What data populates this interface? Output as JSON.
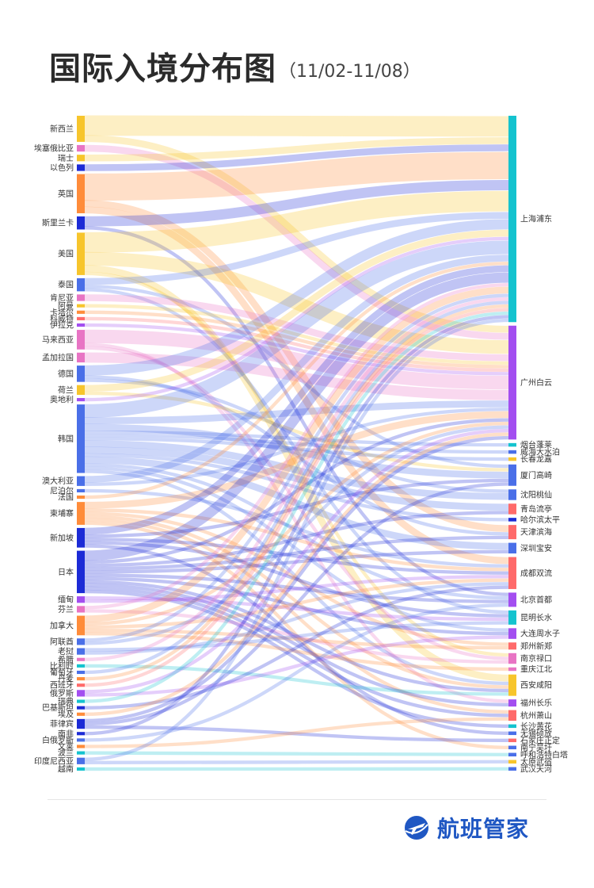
{
  "header": {
    "title": "国际入境分布图",
    "subtitle": "（11/02-11/08）"
  },
  "brand": {
    "name": "航班管家",
    "color": "#1f57c3"
  },
  "diagram": {
    "type": "sankey",
    "sources": [
      {
        "name": "新西兰",
        "color": "#f7c52c"
      },
      {
        "name": "埃塞俄比亚",
        "color": "#e874c4"
      },
      {
        "name": "瑞士",
        "color": "#f7c52c"
      },
      {
        "name": "以色列",
        "color": "#1c2bd6"
      },
      {
        "name": "英国",
        "color": "#ff8c3a"
      },
      {
        "name": "斯里兰卡",
        "color": "#1c2bd6"
      },
      {
        "name": "美国",
        "color": "#f7c52c"
      },
      {
        "name": "泰国",
        "color": "#4a6fe8"
      },
      {
        "name": "肯尼亚",
        "color": "#e874c4"
      },
      {
        "name": "阿曼",
        "color": "#f7c52c"
      },
      {
        "name": "卡塔尔",
        "color": "#ff8c3a"
      },
      {
        "name": "科威特",
        "color": "#ff6a6a"
      },
      {
        "name": "伊拉克",
        "color": "#a34ef0"
      },
      {
        "name": "马来西亚",
        "color": "#e874c4"
      },
      {
        "name": "孟加拉国",
        "color": "#e874c4"
      },
      {
        "name": "德国",
        "color": "#4a6fe8"
      },
      {
        "name": "荷兰",
        "color": "#f7c52c"
      },
      {
        "name": "奥地利",
        "color": "#a34ef0"
      },
      {
        "name": "韩国",
        "color": "#4a6fe8"
      },
      {
        "name": "澳大利亚",
        "color": "#4a6fe8"
      },
      {
        "name": "尼泊尔",
        "color": "#4a6fe8"
      },
      {
        "name": "法国",
        "color": "#ff8c3a"
      },
      {
        "name": "柬埔寨",
        "color": "#ff8c3a"
      },
      {
        "name": "新加坡",
        "color": "#1c2bd6"
      },
      {
        "name": "日本",
        "color": "#1c2bd6"
      },
      {
        "name": "缅甸",
        "color": "#a34ef0"
      },
      {
        "name": "芬兰",
        "color": "#e874c4"
      },
      {
        "name": "加拿大",
        "color": "#ff8c3a"
      },
      {
        "name": "阿联酋",
        "color": "#4a6fe8"
      },
      {
        "name": "老挝",
        "color": "#4a6fe8"
      },
      {
        "name": "希腊",
        "color": "#e874c4"
      },
      {
        "name": "比利时",
        "color": "#14c3cf"
      },
      {
        "name": "葡萄牙",
        "color": "#4a6fe8"
      },
      {
        "name": "丹麦",
        "color": "#ff8c3a"
      },
      {
        "name": "西班牙",
        "color": "#ff6a6a"
      },
      {
        "name": "俄罗斯",
        "color": "#a34ef0"
      },
      {
        "name": "瑞典",
        "color": "#14c3cf"
      },
      {
        "name": "巴基斯坦",
        "color": "#1c2bd6"
      },
      {
        "name": "埃及",
        "color": "#ff8c3a"
      },
      {
        "name": "菲律宾",
        "color": "#1c2bd6"
      },
      {
        "name": "南非",
        "color": "#1c2bd6"
      },
      {
        "name": "白俄罗斯",
        "color": "#4a6fe8"
      },
      {
        "name": "文莱",
        "color": "#ff8c3a"
      },
      {
        "name": "波兰",
        "color": "#14c3cf"
      },
      {
        "name": "印度尼西亚",
        "color": "#4a6fe8"
      },
      {
        "name": "越南",
        "color": "#14c3cf"
      }
    ],
    "targets": [
      {
        "name": "上海浦东",
        "color": "#14c3cf"
      },
      {
        "name": "广州白云",
        "color": "#a34ef0"
      },
      {
        "name": "烟台蓬莱",
        "color": "#14c3cf"
      },
      {
        "name": "威海大水泊",
        "color": "#4a6fe8"
      },
      {
        "name": "长春龙嘉",
        "color": "#f7c52c"
      },
      {
        "name": "厦门高崎",
        "color": "#4a6fe8"
      },
      {
        "name": "沈阳桃仙",
        "color": "#4a6fe8"
      },
      {
        "name": "青岛流亭",
        "color": "#ff6a6a"
      },
      {
        "name": "哈尔滨太平",
        "color": "#1c2bd6"
      },
      {
        "name": "天津滨海",
        "color": "#ff6a6a"
      },
      {
        "name": "深圳宝安",
        "color": "#4a6fe8"
      },
      {
        "name": "成都双流",
        "color": "#ff6a6a"
      },
      {
        "name": "北京首都",
        "color": "#a34ef0"
      },
      {
        "name": "昆明长水",
        "color": "#14c3cf"
      },
      {
        "name": "大连周水子",
        "color": "#a34ef0"
      },
      {
        "name": "郑州新郑",
        "color": "#ff6a6a"
      },
      {
        "name": "南京禄口",
        "color": "#e874c4"
      },
      {
        "name": "重庆江北",
        "color": "#e874c4"
      },
      {
        "name": "西安咸阳",
        "color": "#f7c52c"
      },
      {
        "name": "福州长乐",
        "color": "#a34ef0"
      },
      {
        "name": "杭州萧山",
        "color": "#ff6a6a"
      },
      {
        "name": "长沙黄花",
        "color": "#14c3cf"
      },
      {
        "name": "无锡硕放",
        "color": "#4a6fe8"
      },
      {
        "name": "石家庄正定",
        "color": "#ff6a6a"
      },
      {
        "name": "南宁吴圩",
        "color": "#4a6fe8"
      },
      {
        "name": "呼和浩特白塔",
        "color": "#4a6fe8"
      },
      {
        "name": "太原武宿",
        "color": "#f7c52c"
      },
      {
        "name": "武汉天河",
        "color": "#4a6fe8"
      }
    ],
    "links": [
      {
        "source": "新西兰",
        "target": "上海浦东",
        "value": 6
      },
      {
        "source": "新西兰",
        "target": "广州白云",
        "value": 2
      },
      {
        "source": "埃塞俄比亚",
        "target": "广州白云",
        "value": 2
      },
      {
        "source": "瑞士",
        "target": "上海浦东",
        "value": 2
      },
      {
        "source": "以色列",
        "target": "上海浦东",
        "value": 2
      },
      {
        "source": "英国",
        "target": "上海浦东",
        "value": 8
      },
      {
        "source": "英国",
        "target": "天津滨海",
        "value": 2
      },
      {
        "source": "英国",
        "target": "成都双流",
        "value": 2
      },
      {
        "source": "斯里兰卡",
        "target": "上海浦东",
        "value": 3
      },
      {
        "source": "斯里兰卡",
        "target": "北京首都",
        "value": 1
      },
      {
        "source": "美国",
        "target": "上海浦东",
        "value": 6
      },
      {
        "source": "美国",
        "target": "广州白云",
        "value": 4
      },
      {
        "source": "美国",
        "target": "西安咸阳",
        "value": 2
      },
      {
        "source": "美国",
        "target": "南京禄口",
        "value": 1
      },
      {
        "source": "泰国",
        "target": "上海浦东",
        "value": 2
      },
      {
        "source": "泰国",
        "target": "厦门高崎",
        "value": 1
      },
      {
        "source": "泰国",
        "target": "昆明长水",
        "value": 1
      },
      {
        "source": "肯尼亚",
        "target": "广州白云",
        "value": 2
      },
      {
        "source": "阿曼",
        "target": "广州白云",
        "value": 1
      },
      {
        "source": "卡塔尔",
        "target": "广州白云",
        "value": 1
      },
      {
        "source": "科威特",
        "target": "广州白云",
        "value": 1
      },
      {
        "source": "伊拉克",
        "target": "广州白云",
        "value": 1
      },
      {
        "source": "马来西亚",
        "target": "广州白云",
        "value": 4
      },
      {
        "source": "马来西亚",
        "target": "福州长乐",
        "value": 1
      },
      {
        "source": "马来西亚",
        "target": "南京禄口",
        "value": 1
      },
      {
        "source": "孟加拉国",
        "target": "广州白云",
        "value": 3
      },
      {
        "source": "德国",
        "target": "上海浦东",
        "value": 3
      },
      {
        "source": "德国",
        "target": "天津滨海",
        "value": 1
      },
      {
        "source": "德国",
        "target": "沈阳桃仙",
        "value": 1
      },
      {
        "source": "荷兰",
        "target": "上海浦东",
        "value": 2
      },
      {
        "source": "荷兰",
        "target": "厦门高崎",
        "value": 1
      },
      {
        "source": "奥地利",
        "target": "上海浦东",
        "value": 1
      },
      {
        "source": "韩国",
        "target": "上海浦东",
        "value": 4
      },
      {
        "source": "韩国",
        "target": "广州白云",
        "value": 2
      },
      {
        "source": "韩国",
        "target": "厦门高崎",
        "value": 2
      },
      {
        "source": "韩国",
        "target": "烟台蓬莱",
        "value": 1
      },
      {
        "source": "韩国",
        "target": "威海大水泊",
        "value": 1
      },
      {
        "source": "韩国",
        "target": "长春龙嘉",
        "value": 1
      },
      {
        "source": "韩国",
        "target": "沈阳桃仙",
        "value": 2
      },
      {
        "source": "韩国",
        "target": "青岛流亭",
        "value": 2
      },
      {
        "source": "韩国",
        "target": "哈尔滨太平",
        "value": 1
      },
      {
        "source": "韩国",
        "target": "深圳宝安",
        "value": 2
      },
      {
        "source": "韩国",
        "target": "北京首都",
        "value": 1
      },
      {
        "source": "韩国",
        "target": "大连周水子",
        "value": 1
      },
      {
        "source": "韩国",
        "target": "西安咸阳",
        "value": 1
      },
      {
        "source": "澳大利亚",
        "target": "上海浦东",
        "value": 2
      },
      {
        "source": "澳大利亚",
        "target": "广州白云",
        "value": 1
      },
      {
        "source": "尼泊尔",
        "target": "成都双流",
        "value": 1
      },
      {
        "source": "法国",
        "target": "上海浦东",
        "value": 1
      },
      {
        "source": "柬埔寨",
        "target": "广州白云",
        "value": 2
      },
      {
        "source": "柬埔寨",
        "target": "成都双流",
        "value": 1
      },
      {
        "source": "柬埔寨",
        "target": "郑州新郑",
        "value": 1
      },
      {
        "source": "柬埔寨",
        "target": "西安咸阳",
        "value": 1
      },
      {
        "source": "柬埔寨",
        "target": "杭州萧山",
        "value": 1
      },
      {
        "source": "柬埔寨",
        "target": "南宁吴圩",
        "value": 1
      },
      {
        "source": "新加坡",
        "target": "上海浦东",
        "value": 2
      },
      {
        "source": "新加坡",
        "target": "厦门高崎",
        "value": 1
      },
      {
        "source": "新加坡",
        "target": "成都双流",
        "value": 1
      },
      {
        "source": "新加坡",
        "target": "昆明长水",
        "value": 1
      },
      {
        "source": "新加坡",
        "target": "无锡硕放",
        "value": 1
      },
      {
        "source": "日本",
        "target": "上海浦东",
        "value": 3
      },
      {
        "source": "日本",
        "target": "广州白云",
        "value": 1
      },
      {
        "source": "日本",
        "target": "青岛流亭",
        "value": 1
      },
      {
        "source": "日本",
        "target": "天津滨海",
        "value": 1
      },
      {
        "source": "日本",
        "target": "深圳宝安",
        "value": 1
      },
      {
        "source": "日本",
        "target": "北京首都",
        "value": 1
      },
      {
        "source": "日本",
        "target": "大连周水子",
        "value": 1
      },
      {
        "source": "日本",
        "target": "西安咸阳",
        "value": 1
      },
      {
        "source": "日本",
        "target": "福州长乐",
        "value": 1
      },
      {
        "source": "日本",
        "target": "杭州萧山",
        "value": 1
      },
      {
        "source": "日本",
        "target": "长沙黄花",
        "value": 1
      },
      {
        "source": "缅甸",
        "target": "昆明长水",
        "value": 1
      },
      {
        "source": "缅甸",
        "target": "成都双流",
        "value": 1
      },
      {
        "source": "芬兰",
        "target": "上海浦东",
        "value": 1
      },
      {
        "source": "芬兰",
        "target": "南京禄口",
        "value": 1
      },
      {
        "source": "加拿大",
        "target": "上海浦东",
        "value": 2
      },
      {
        "source": "加拿大",
        "target": "广州白云",
        "value": 1
      },
      {
        "source": "加拿大",
        "target": "成都双流",
        "value": 1
      },
      {
        "source": "加拿大",
        "target": "郑州新郑",
        "value": 1
      },
      {
        "source": "加拿大",
        "target": "重庆江北",
        "value": 1
      },
      {
        "source": "阿联酋",
        "target": "上海浦东",
        "value": 1
      },
      {
        "source": "阿联酋",
        "target": "广州白云",
        "value": 1
      },
      {
        "source": "老挝",
        "target": "昆明长水",
        "value": 1
      },
      {
        "source": "老挝",
        "target": "成都双流",
        "value": 1
      },
      {
        "source": "希腊",
        "target": "上海浦东",
        "value": 1
      },
      {
        "source": "比利时",
        "target": "西安咸阳",
        "value": 1
      },
      {
        "source": "葡萄牙",
        "target": "上海浦东",
        "value": 1
      },
      {
        "source": "丹麦",
        "target": "上海浦东",
        "value": 1
      },
      {
        "source": "西班牙",
        "target": "上海浦东",
        "value": 1
      },
      {
        "source": "俄罗斯",
        "target": "广州白云",
        "value": 1
      },
      {
        "source": "俄罗斯",
        "target": "大连周水子",
        "value": 1
      },
      {
        "source": "瑞典",
        "target": "上海浦东",
        "value": 1
      },
      {
        "source": "巴基斯坦",
        "target": "成都双流",
        "value": 1
      },
      {
        "source": "埃及",
        "target": "广州白云",
        "value": 1
      },
      {
        "source": "菲律宾",
        "target": "广州白云",
        "value": 1
      },
      {
        "source": "菲律宾",
        "target": "厦门高崎",
        "value": 1
      },
      {
        "source": "菲律宾",
        "target": "石家庄正定",
        "value": 1
      },
      {
        "source": "南非",
        "target": "上海浦东",
        "value": 1
      },
      {
        "source": "白俄罗斯",
        "target": "北京首都",
        "value": 1
      },
      {
        "source": "文莱",
        "target": "杭州萧山",
        "value": 1
      },
      {
        "source": "波兰",
        "target": "呼和浩特白塔",
        "value": 1
      },
      {
        "source": "印度尼西亚",
        "target": "上海浦东",
        "value": 1
      },
      {
        "source": "印度尼西亚",
        "target": "太原武宿",
        "value": 1
      },
      {
        "source": "越南",
        "target": "武汉天河",
        "value": 1
      }
    ]
  }
}
